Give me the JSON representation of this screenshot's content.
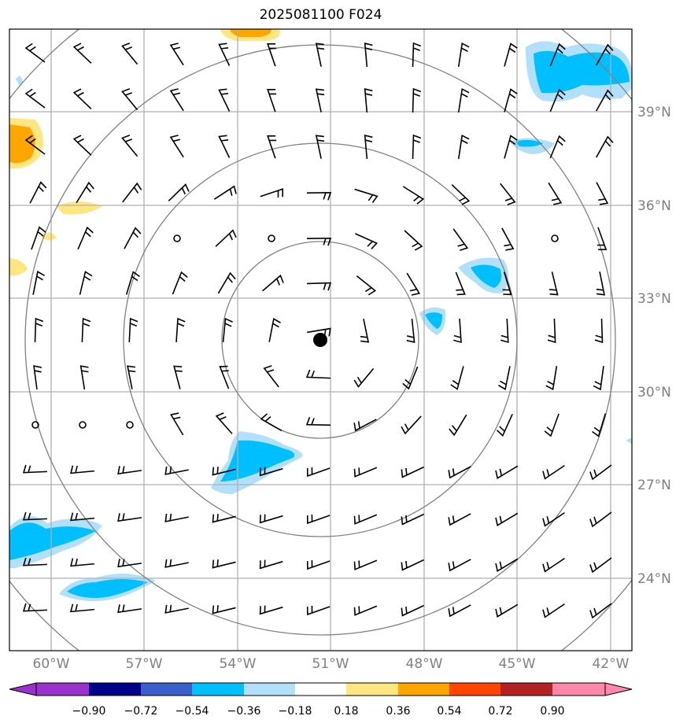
{
  "title": "2025081100 F024",
  "map": {
    "lon_labels": [
      "60°W",
      "57°W",
      "54°W",
      "51°W",
      "48°W",
      "45°W",
      "42°W"
    ],
    "lat_labels": [
      "39°N",
      "36°N",
      "33°N",
      "30°N",
      "27°N",
      "24°N"
    ],
    "center_marker": "storm-center-dot",
    "range_rings": 4,
    "grid_color": "#b0b0b0",
    "ring_color": "#808080"
  },
  "colorbar": {
    "ticks": [
      "−0.90",
      "−0.72",
      "−0.54",
      "−0.36",
      "−0.18",
      "0.18",
      "0.36",
      "0.54",
      "0.72",
      "0.90"
    ],
    "colors": [
      "#9932cc",
      "#00008b",
      "#3a5fcd",
      "#00bfff",
      "#b2e0fa",
      "#ffffff",
      "#ffe680",
      "#ffa500",
      "#ff4500",
      "#b22222",
      "#ff88aa"
    ],
    "extend": "both"
  }
}
